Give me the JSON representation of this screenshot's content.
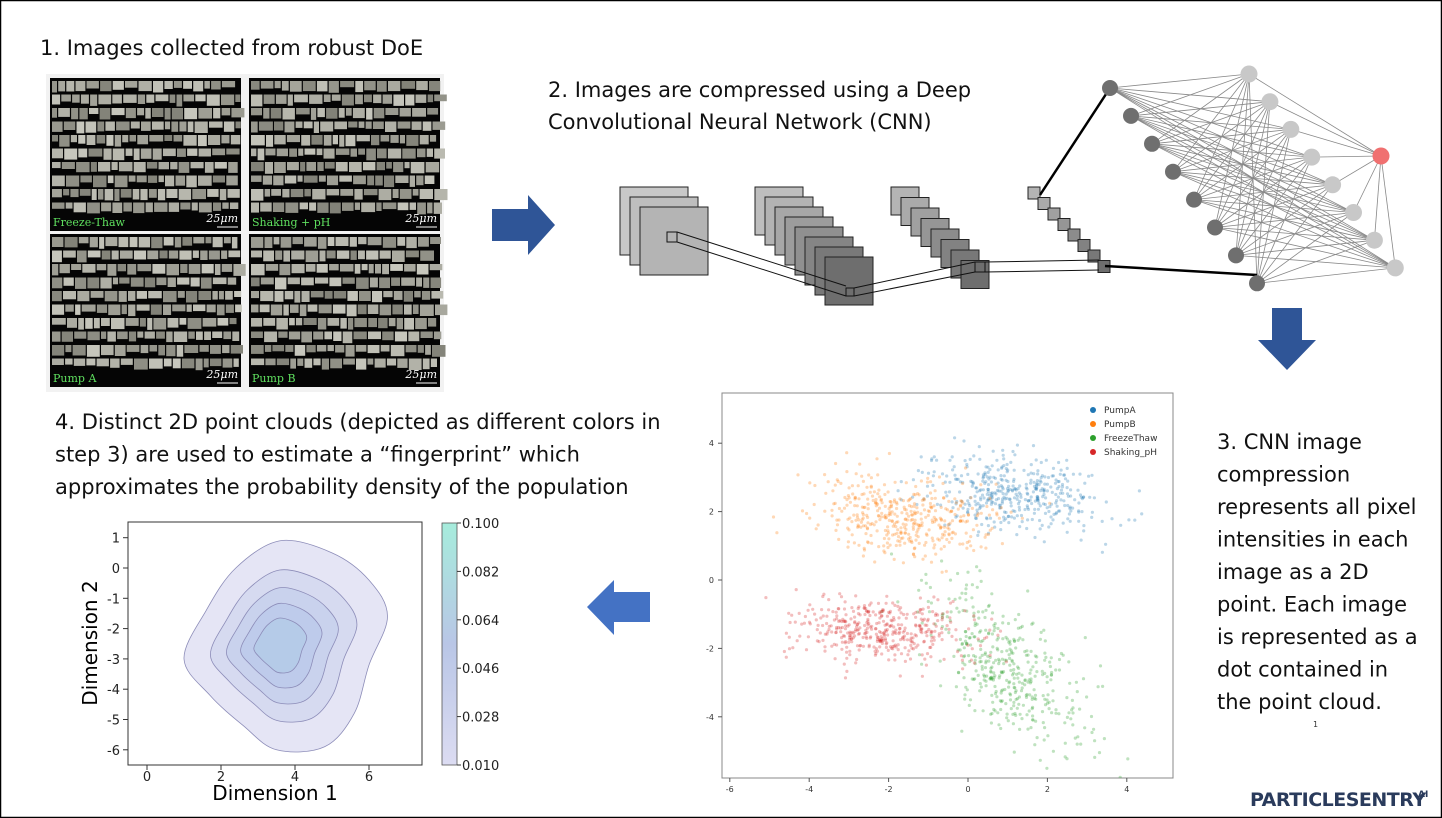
{
  "steps": {
    "step1": "1. Images collected from robust DoE",
    "step2": [
      "2. Images are compressed using a Deep",
      "Convolutional Neural Network (CNN)"
    ],
    "step3": [
      "3. CNN image",
      "compression",
      "represents all pixel",
      "intensities in each",
      "image as a 2D",
      "point. Each image",
      "is represented as a",
      "dot contained in",
      "the point cloud."
    ],
    "step4": [
      "4. Distinct 2D point clouds (depicted as different colors in",
      "step 3) are used to estimate a “fingerprint” which",
      "approximates the probability density of the population"
    ]
  },
  "image_panels": [
    {
      "name": "Freeze-Thaw",
      "scale": "25μm"
    },
    {
      "name": "Shaking + pH",
      "scale": "25μm"
    },
    {
      "name": "Pump A",
      "scale": "25μm"
    },
    {
      "name": "Pump B",
      "scale": "25μm"
    }
  ],
  "scatter": {
    "legend": [
      {
        "name": "PumpA",
        "color": "#1f77b4"
      },
      {
        "name": "PumpB",
        "color": "#ff7f0e"
      },
      {
        "name": "FreezeThaw",
        "color": "#2ca02c"
      },
      {
        "name": "Shaking_pH",
        "color": "#d62728"
      }
    ],
    "xticks": [
      -6,
      -4,
      -2,
      0,
      2,
      4
    ],
    "yticks": [
      4,
      2,
      0,
      -2,
      -4
    ],
    "page_number": "1"
  },
  "density": {
    "xlabel": "Dimension 1",
    "ylabel": "Dimension 2",
    "xticks": [
      0,
      2,
      4,
      6
    ],
    "yticks": [
      1,
      0,
      -1,
      -2,
      -3,
      -4,
      -5,
      -6
    ],
    "colorbar_ticks": [
      {
        "value": 0.1,
        "label": "0.100"
      },
      {
        "value": 0.082,
        "label": "0.082"
      },
      {
        "value": 0.064,
        "label": "0.064"
      },
      {
        "value": 0.046,
        "label": "0.046"
      },
      {
        "value": 0.028,
        "label": "0.028"
      },
      {
        "value": 0.01,
        "label": "0.010"
      }
    ]
  },
  "logo": {
    "name": "PARTICLESENTRY",
    "suffix": "AI"
  }
}
